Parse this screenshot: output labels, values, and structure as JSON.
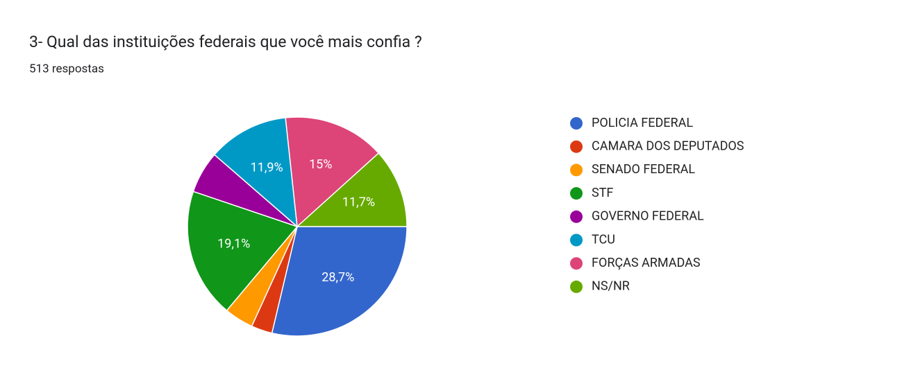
{
  "chart_data": {
    "type": "pie",
    "title": "3- Qual das instituições federais que você mais confia ?",
    "subtitle": "513 respostas",
    "categories": [
      "POLICIA FEDERAL",
      "CAMARA DOS DEPUTADOS",
      "SENADO FEDERAL",
      "STF",
      "GOVERNO FEDERAL",
      "TCU",
      "FORÇAS ARMADAS",
      "NS/NR"
    ],
    "values": [
      28.7,
      3.1,
      4.3,
      19.1,
      6.2,
      11.9,
      15,
      11.7
    ],
    "value_labels": [
      "28,7%",
      null,
      null,
      "19,1%",
      null,
      "11,9%",
      "15%",
      "11,7%"
    ],
    "colors": [
      "#3366cc",
      "#dc3912",
      "#ff9900",
      "#109618",
      "#990099",
      "#0099c6",
      "#dd4477",
      "#66aa00"
    ],
    "legend": "right"
  }
}
